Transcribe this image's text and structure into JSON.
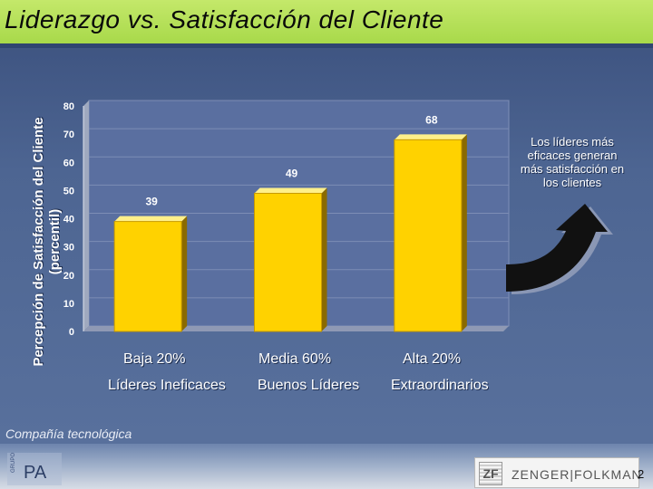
{
  "title": "Liderazgo  vs. Satisfacción del Cliente",
  "side_note": "Los líderes más eficaces generan más satisfacción en los clientes",
  "footer": {
    "company_label": "Compañía tecnológica",
    "left_logo_text": "PA",
    "left_logo_vertical": "GRUPO",
    "right_logo_mark": "ZF",
    "right_logo_text": "ZENGER|FOLKMAN",
    "page_number": "2"
  },
  "colors": {
    "title_bar": "#a8d94a",
    "bar_fill": "#ffd200",
    "plot_bg": "#5a6fa0",
    "background": "#4d6592",
    "arrow": "#111111"
  },
  "chart_data": {
    "type": "bar",
    "ylabel": "Percepción de Satisfacción del Cliente (percentil)",
    "xlabel": "",
    "ylim": [
      0,
      80
    ],
    "y_ticks": [
      0,
      10,
      20,
      30,
      40,
      50,
      60,
      70,
      80
    ],
    "grid": true,
    "categories": [
      {
        "line1": "Baja 20%",
        "line2": "Líderes Ineficaces"
      },
      {
        "line1": "Media 60%",
        "line2": "Buenos Líderes"
      },
      {
        "line1": "Alta  20%",
        "line2": "Extraordinarios"
      }
    ],
    "values": [
      39,
      49,
      68
    ]
  }
}
